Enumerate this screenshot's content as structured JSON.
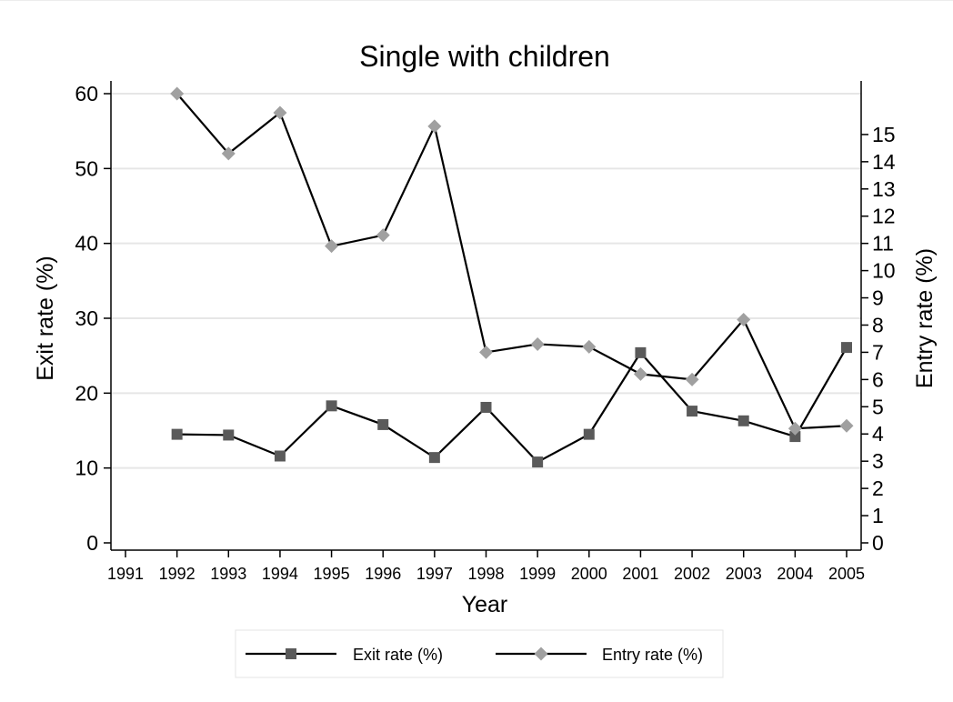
{
  "chart_data": {
    "type": "line",
    "title": "Single with children",
    "xlabel": "Year",
    "ylabel_left": "Exit rate (%)",
    "ylabel_right": "Entry rate (%)",
    "x_ticks": [
      "1991",
      "1992",
      "1993",
      "1994",
      "1995",
      "1996",
      "1997",
      "1998",
      "1999",
      "2000",
      "2001",
      "2002",
      "2003",
      "2004",
      "2005"
    ],
    "left_ticks": [
      0,
      10,
      20,
      30,
      40,
      50,
      60
    ],
    "right_ticks": [
      0,
      1,
      2,
      3,
      4,
      5,
      6,
      7,
      8,
      9,
      10,
      11,
      12,
      13,
      14,
      15
    ],
    "left_ylim": [
      0,
      60
    ],
    "right_ylim": [
      0,
      16.5
    ],
    "grid": true,
    "legend_position": "bottom",
    "series": [
      {
        "name": "Exit rate (%)",
        "axis": "left",
        "marker": "square",
        "marker_color": "#5a5a5a",
        "line_color": "#000000",
        "x": [
          1992,
          1993,
          1994,
          1995,
          1996,
          1997,
          1998,
          1999,
          2000,
          2001,
          2002,
          2003,
          2004,
          2005
        ],
        "values": [
          14.5,
          14.4,
          11.6,
          18.3,
          15.8,
          11.4,
          18.1,
          10.8,
          14.5,
          25.4,
          17.6,
          16.3,
          14.2,
          26.1
        ]
      },
      {
        "name": "Entry rate (%)",
        "axis": "right",
        "marker": "diamond",
        "marker_color": "#a0a0a0",
        "line_color": "#000000",
        "x": [
          1992,
          1993,
          1994,
          1995,
          1996,
          1997,
          1998,
          1999,
          2000,
          2001,
          2002,
          2003,
          2004,
          2005
        ],
        "values": [
          16.5,
          14.3,
          15.8,
          10.9,
          11.3,
          15.3,
          7.0,
          7.3,
          7.2,
          6.2,
          6.0,
          8.2,
          4.2,
          4.3
        ]
      }
    ]
  }
}
